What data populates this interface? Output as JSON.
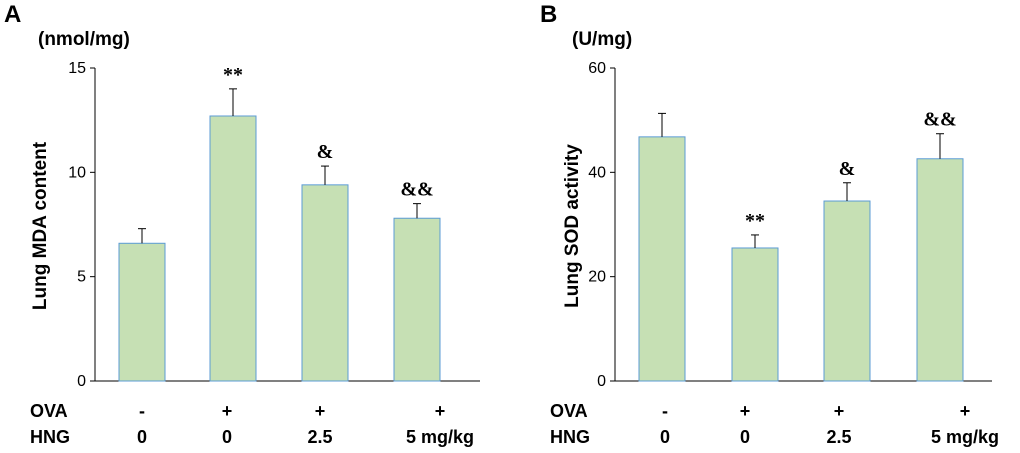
{
  "chart_data": [
    {
      "type": "bar",
      "panel_label": "A",
      "unit_label": "(nmol/mg)",
      "ylabel": "Lung MDA content",
      "ylim": [
        0,
        15
      ],
      "yticks": [
        0,
        5,
        10,
        15
      ],
      "values": [
        6.6,
        12.7,
        9.4,
        7.8
      ],
      "errors": [
        0.7,
        1.3,
        0.9,
        0.7
      ],
      "annotations": [
        "",
        "**",
        "&",
        "&&"
      ],
      "conditions": [
        {
          "name": "OVA",
          "values": [
            "-",
            "+",
            "+",
            "+"
          ]
        },
        {
          "name": "HNG",
          "values": [
            "0",
            "0",
            "2.5",
            "5 mg/kg"
          ]
        }
      ]
    },
    {
      "type": "bar",
      "panel_label": "B",
      "unit_label": "(U/mg)",
      "ylabel": "Lung SOD activity",
      "ylim": [
        0,
        60
      ],
      "yticks": [
        0,
        20,
        40,
        60
      ],
      "values": [
        46.8,
        25.5,
        34.5,
        42.6
      ],
      "errors": [
        4.5,
        2.5,
        3.5,
        4.8
      ],
      "annotations": [
        "",
        "**",
        "&",
        "&&"
      ],
      "conditions": [
        {
          "name": "OVA",
          "values": [
            "-",
            "+",
            "+",
            "+"
          ]
        },
        {
          "name": "HNG",
          "values": [
            "0",
            "0",
            "2.5",
            "5 mg/kg"
          ]
        }
      ]
    }
  ],
  "colors": {
    "bar_fill": "#c6e0b4",
    "bar_edge": "#5b9bd5",
    "axis": "#000000"
  }
}
